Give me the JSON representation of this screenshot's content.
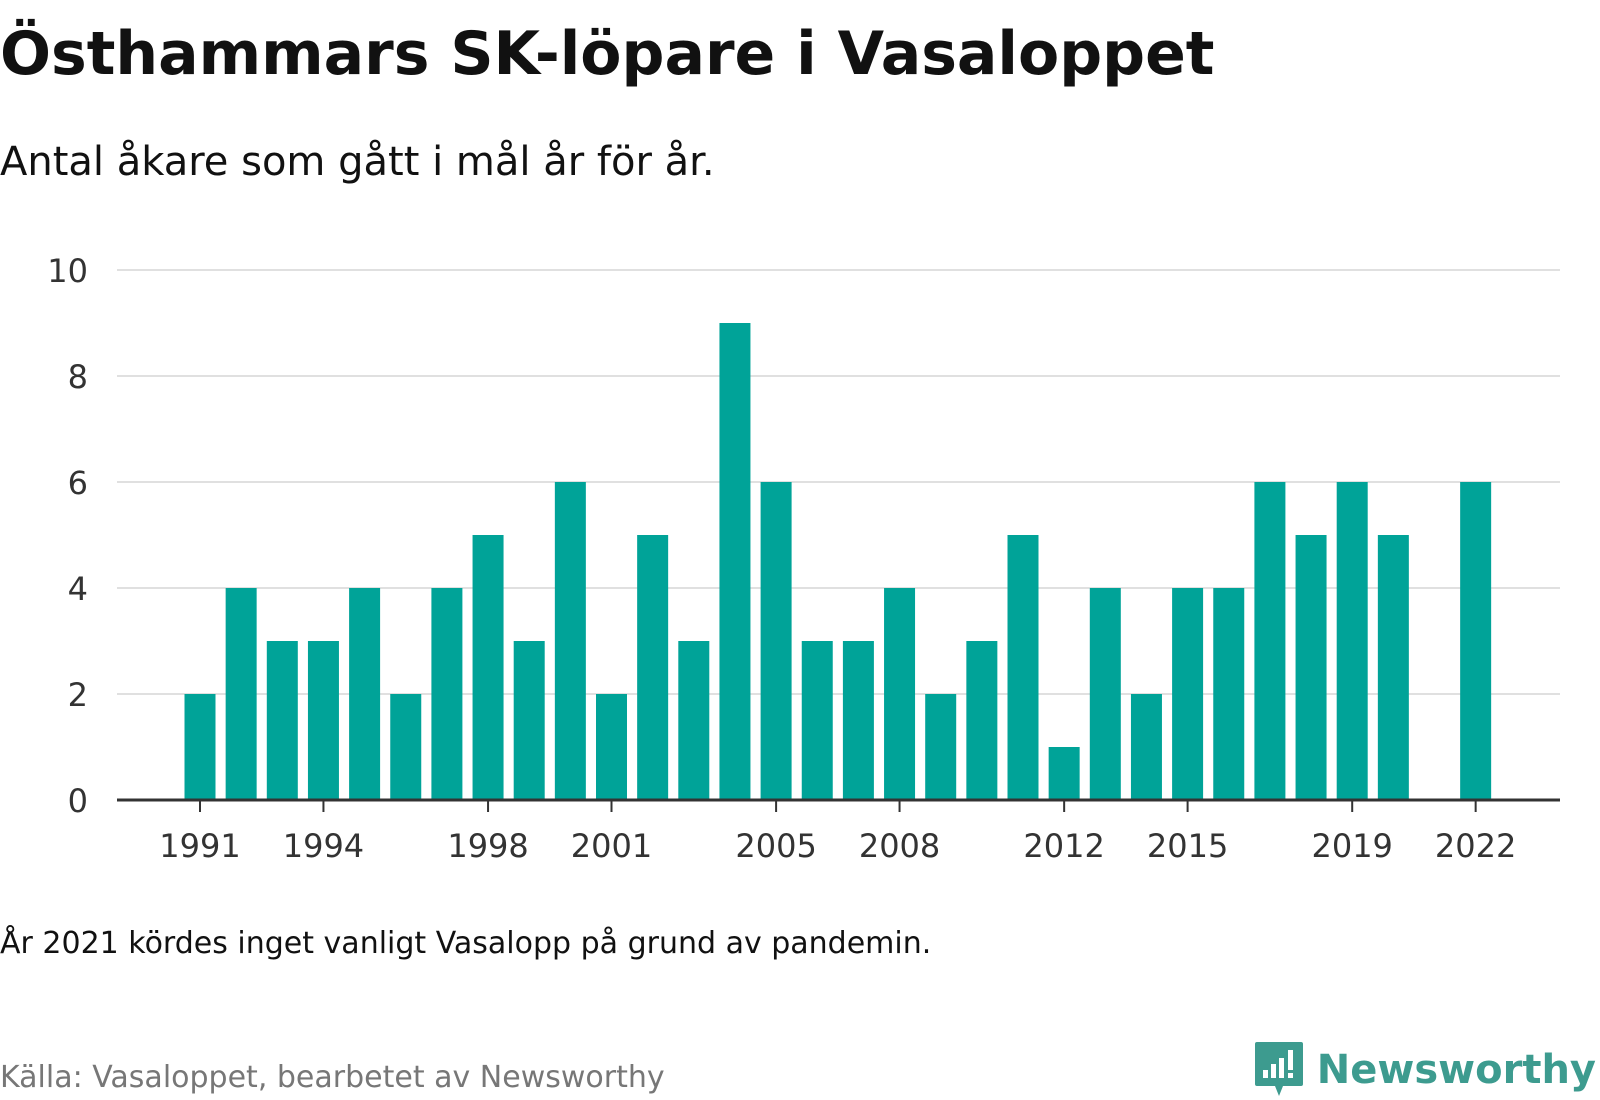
{
  "title": "Östhammars SK-löpare i Vasaloppet",
  "subtitle": "Antal åkare som gått i mål år för år.",
  "note": "År 2021 kördes inget vanligt Vasalopp på grund av pandemin.",
  "source": "Källa: Vasaloppet, bearbetet av Newsworthy",
  "logo": {
    "name": "Newsworthy",
    "icon": "newsworthy-logo-icon"
  },
  "colors": {
    "bar": "#00a398",
    "grid": "#e0e0e0",
    "axis": "#333333",
    "tick_text": "#333333",
    "logo": "#3d9b8f"
  },
  "chart_data": {
    "type": "bar",
    "title": "Östhammars SK-löpare i Vasaloppet",
    "subtitle": "Antal åkare som gått i mål år för år.",
    "categories": [
      1991,
      1992,
      1993,
      1994,
      1995,
      1996,
      1997,
      1998,
      1999,
      2000,
      2001,
      2002,
      2003,
      2004,
      2005,
      2006,
      2007,
      2008,
      2009,
      2010,
      2011,
      2012,
      2013,
      2014,
      2015,
      2016,
      2017,
      2018,
      2019,
      2020,
      2021,
      2022
    ],
    "values": [
      2,
      4,
      3,
      3,
      4,
      2,
      4,
      5,
      3,
      6,
      2,
      5,
      3,
      9,
      6,
      3,
      3,
      4,
      2,
      3,
      5,
      1,
      4,
      2,
      4,
      4,
      6,
      5,
      6,
      5,
      null,
      6
    ],
    "x_tick_labels": [
      "1991",
      "1994",
      "1998",
      "2001",
      "2005",
      "2008",
      "2012",
      "2015",
      "2019",
      "2022"
    ],
    "y_ticks": [
      0,
      2,
      4,
      6,
      8,
      10
    ],
    "ylim": [
      0,
      10
    ],
    "xlabel": "",
    "ylabel": "",
    "grid": true,
    "legend": "none"
  }
}
